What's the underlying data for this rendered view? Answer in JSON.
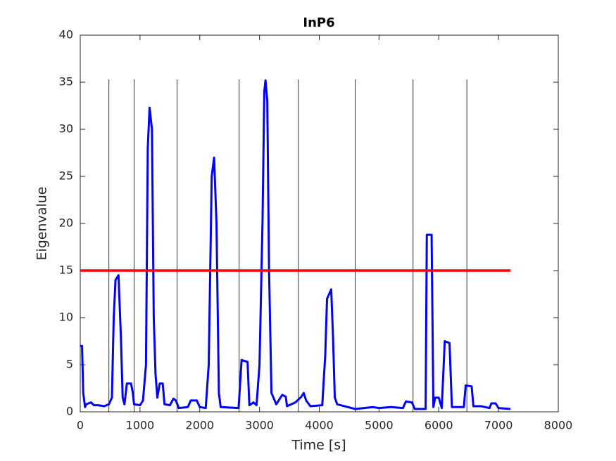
{
  "chart_data": {
    "type": "line",
    "title": "InP6",
    "xlabel": "Time [s]",
    "ylabel": "Eigenvalue",
    "xlim": [
      0,
      8000
    ],
    "ylim": [
      0,
      40
    ],
    "xticks": [
      0,
      1000,
      2000,
      3000,
      4000,
      5000,
      6000,
      7000,
      8000
    ],
    "yticks": [
      0,
      5,
      10,
      15,
      20,
      25,
      30,
      35,
      40
    ],
    "grid": false,
    "series": [
      {
        "color": "#0000ff",
        "x": [
          0,
          30,
          50,
          80,
          100,
          180,
          230,
          300,
          400,
          480,
          530,
          560,
          590,
          640,
          680,
          710,
          740,
          780,
          850,
          880,
          900,
          1000,
          1050,
          1100,
          1130,
          1160,
          1200,
          1230,
          1260,
          1290,
          1330,
          1380,
          1410,
          1500,
          1560,
          1600,
          1650,
          1800,
          1850,
          1950,
          2000,
          2100,
          2150,
          2200,
          2240,
          2280,
          2320,
          2350,
          2650,
          2700,
          2800,
          2830,
          2900,
          2950,
          3000,
          3050,
          3080,
          3100,
          3130,
          3160,
          3200,
          3280,
          3380,
          3440,
          3460,
          3600,
          3700,
          3740,
          3780,
          3850,
          4050,
          4100,
          4130,
          4200,
          4230,
          4260,
          4300,
          4600,
          4900,
          5000,
          5200,
          5400,
          5450,
          5550,
          5600,
          5780,
          5800,
          5880,
          5910,
          5940,
          6000,
          6050,
          6100,
          6180,
          6220,
          6420,
          6450,
          6550,
          6580,
          6700,
          6850,
          6880,
          6950,
          7000,
          7200
        ],
        "values": [
          7,
          7,
          2,
          0.5,
          0.8,
          1.0,
          0.7,
          0.7,
          0.6,
          0.8,
          1.5,
          10,
          14,
          14.5,
          8,
          1.5,
          0.8,
          3,
          3,
          2,
          0.8,
          0.7,
          1.2,
          5,
          28,
          32.3,
          30,
          10,
          4,
          1.5,
          3,
          3,
          0.8,
          0.7,
          1.4,
          1.2,
          0.4,
          0.5,
          1.2,
          1.2,
          0.5,
          0.4,
          5,
          25,
          27,
          20,
          2,
          0.5,
          0.4,
          5.5,
          5.3,
          0.7,
          1.0,
          0.7,
          5,
          20,
          34,
          35.2,
          33,
          15,
          2,
          0.8,
          1.8,
          1.6,
          0.6,
          1.0,
          1.6,
          2.0,
          1.2,
          0.6,
          0.7,
          6,
          12,
          13,
          8,
          1.5,
          0.8,
          0.3,
          0.5,
          0.4,
          0.5,
          0.4,
          1.1,
          1.0,
          0.3,
          0.3,
          18.8,
          18.8,
          0.5,
          1.5,
          1.5,
          0.4,
          7.5,
          7.3,
          0.5,
          0.5,
          2.8,
          2.7,
          0.6,
          0.6,
          0.4,
          0.9,
          0.9,
          0.4,
          0.3
        ]
      }
    ],
    "threshold": {
      "y": 15,
      "x": [
        0,
        7200
      ],
      "color": "#ff0000"
    },
    "vlines": {
      "x": [
        480,
        900,
        1620,
        2660,
        3650,
        4600,
        5570,
        6470
      ],
      "ymax": 35.3,
      "color": "#000000"
    }
  }
}
